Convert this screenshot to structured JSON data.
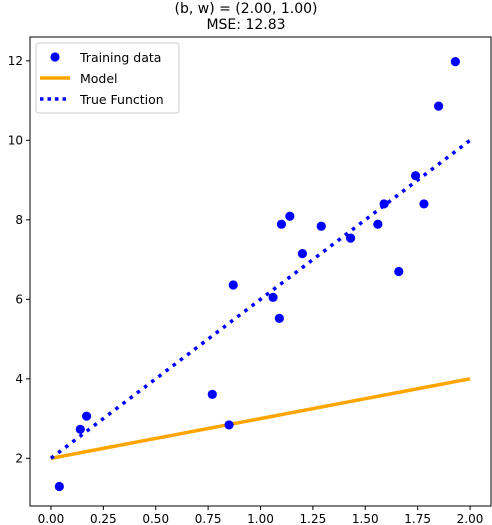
{
  "chart_data": {
    "type": "scatter",
    "title": "(b, w) = (2.00, 1.00)",
    "subtitle": "MSE: 12.83",
    "xlim": [
      -0.1,
      2.1
    ],
    "ylim": [
      0.8,
      12.6
    ],
    "x_ticks": [
      0.0,
      0.25,
      0.5,
      0.75,
      1.0,
      1.25,
      1.5,
      1.75,
      2.0
    ],
    "x_tick_labels": [
      "0.00",
      "0.25",
      "0.50",
      "0.75",
      "1.00",
      "1.25",
      "1.50",
      "1.75",
      "2.00"
    ],
    "y_ticks": [
      2,
      4,
      6,
      8,
      10,
      12
    ],
    "y_tick_labels": [
      "2",
      "4",
      "6",
      "8",
      "10",
      "12"
    ],
    "legend_position": "top-left",
    "series": [
      {
        "name": "Training data",
        "kind": "scatter",
        "color": "#0000ff",
        "points": [
          [
            0.04,
            1.29
          ],
          [
            0.14,
            2.73
          ],
          [
            0.17,
            3.06
          ],
          [
            0.77,
            3.61
          ],
          [
            0.85,
            2.84
          ],
          [
            0.87,
            6.36
          ],
          [
            1.06,
            6.05
          ],
          [
            1.09,
            5.52
          ],
          [
            1.1,
            7.89
          ],
          [
            1.14,
            8.09
          ],
          [
            1.2,
            7.15
          ],
          [
            1.29,
            7.84
          ],
          [
            1.43,
            7.54
          ],
          [
            1.56,
            7.89
          ],
          [
            1.59,
            8.4
          ],
          [
            1.66,
            6.7
          ],
          [
            1.74,
            9.11
          ],
          [
            1.78,
            8.4
          ],
          [
            1.85,
            10.86
          ],
          [
            1.93,
            11.98
          ]
        ]
      },
      {
        "name": "Model",
        "kind": "line",
        "style": "solid",
        "color": "#ffa500",
        "points": [
          [
            0.0,
            2.0
          ],
          [
            2.0,
            4.0
          ]
        ]
      },
      {
        "name": "True Function",
        "kind": "line",
        "style": "dotted",
        "color": "#0000ff",
        "points": [
          [
            0.0,
            2.0
          ],
          [
            2.0,
            10.0
          ]
        ]
      }
    ]
  }
}
